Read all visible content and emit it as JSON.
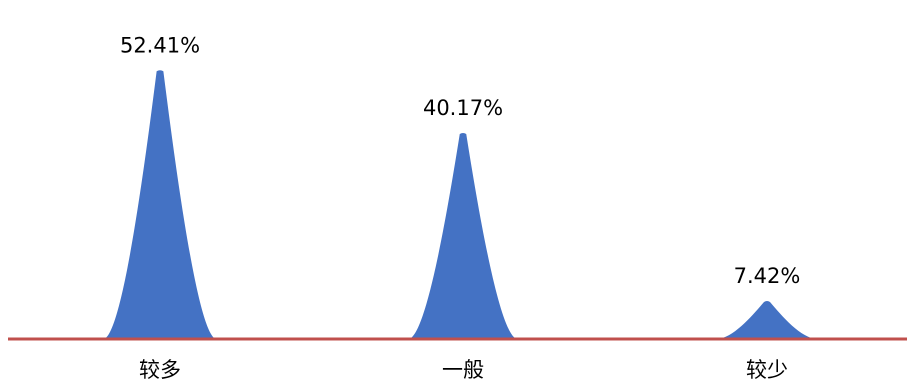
{
  "chart_data": {
    "type": "area",
    "title": "",
    "xlabel": "",
    "ylabel": "",
    "ylim": [
      0,
      55
    ],
    "grid": false,
    "legend": "none",
    "categories": [
      "较多",
      "一般",
      "较少"
    ],
    "values": [
      52.41,
      40.17,
      7.42
    ],
    "data_labels": [
      "52.41%",
      "40.17%",
      "7.42%"
    ],
    "colors": {
      "fill": "#4472C4",
      "baseline": "#C0504D"
    }
  }
}
